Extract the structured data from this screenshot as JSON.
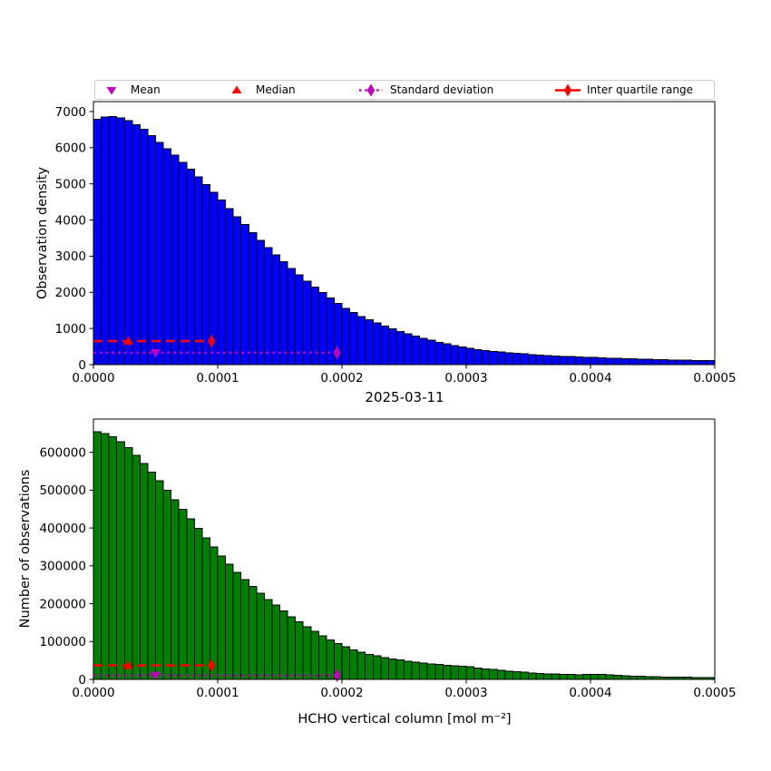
{
  "figure": {
    "title": "2025-03-11",
    "xlabel": "HCHO vertical column [mol m⁻²]"
  },
  "legend": {
    "items": [
      {
        "label": "Mean",
        "marker": "triangle-down",
        "color": "#bf00bf",
        "line": "none"
      },
      {
        "label": "Median",
        "marker": "triangle-up",
        "color": "#ff0000",
        "line": "none"
      },
      {
        "label": "Standard deviation",
        "marker": "thin-diamond",
        "color": "#bf00bf",
        "line": "dotted"
      },
      {
        "label": "Inter quartile range",
        "marker": "thin-diamond",
        "color": "#ff0000",
        "line": "dashed"
      }
    ]
  },
  "chart_data": [
    {
      "type": "bar",
      "name": "observation-density-histogram",
      "ylabel": "Observation density",
      "bar_color": "#0000ff",
      "edge_color": "#000000",
      "xlim": [
        0,
        0.0005
      ],
      "ylim": [
        0,
        7275
      ],
      "bin_width": 6.25e-06,
      "xticks": [
        0,
        0.0001,
        0.0002,
        0.0003,
        0.0004,
        0.0005
      ],
      "xtick_labels": [
        "0.0000",
        "0.0001",
        "0.0002",
        "0.0003",
        "0.0004",
        "0.0005"
      ],
      "yticks": [
        0,
        1000,
        2000,
        3000,
        4000,
        5000,
        6000,
        7000
      ],
      "ytick_labels": [
        "0",
        "1000",
        "2000",
        "3000",
        "4000",
        "5000",
        "6000",
        "7000"
      ],
      "values": [
        6780,
        6850,
        6860,
        6820,
        6750,
        6640,
        6510,
        6340,
        6150,
        5970,
        5790,
        5600,
        5400,
        5190,
        4980,
        4770,
        4550,
        4320,
        4090,
        3870,
        3650,
        3440,
        3240,
        3040,
        2850,
        2660,
        2480,
        2310,
        2150,
        1990,
        1840,
        1690,
        1550,
        1440,
        1330,
        1240,
        1150,
        1070,
        990,
        915,
        850,
        790,
        730,
        675,
        620,
        575,
        530,
        490,
        450,
        420,
        395,
        370,
        350,
        330,
        312,
        296,
        280,
        266,
        253,
        241,
        230,
        220,
        212,
        203,
        195,
        187,
        180,
        172,
        165,
        158,
        152,
        146,
        140,
        135,
        130,
        125,
        120,
        116,
        112,
        108
      ],
      "markers": {
        "mean": {
          "x": 5e-05,
          "y": 330,
          "color": "#bf00bf",
          "shape": "triangle-down"
        },
        "median": {
          "x": 2.8e-05,
          "y": 650,
          "color": "#ff0000",
          "shape": "triangle-up"
        },
        "std": {
          "x0": 0,
          "x1": 0.000196,
          "y": 330,
          "color": "#bf00bf",
          "style": "dotted",
          "shape": "thin-diamond"
        },
        "iqr": {
          "x0": 0,
          "x1": 9.5e-05,
          "y": 650,
          "color": "#ff0000",
          "style": "dashed",
          "shape": "thin-diamond"
        }
      }
    },
    {
      "type": "bar",
      "name": "number-of-observations-histogram",
      "ylabel": "Number of observations",
      "bar_color": "#008000",
      "edge_color": "#000000",
      "xlim": [
        0,
        0.0005
      ],
      "ylim": [
        0,
        688000
      ],
      "bin_width": 6.25e-06,
      "xticks": [
        0,
        0.0001,
        0.0002,
        0.0003,
        0.0004,
        0.0005
      ],
      "xtick_labels": [
        "0.0000",
        "0.0001",
        "0.0002",
        "0.0003",
        "0.0004",
        "0.0005"
      ],
      "yticks": [
        0,
        100000,
        200000,
        300000,
        400000,
        500000,
        600000
      ],
      "ytick_labels": [
        "0",
        "100000",
        "200000",
        "300000",
        "400000",
        "500000",
        "600000"
      ],
      "values": [
        655000,
        650000,
        641000,
        628000,
        612000,
        592000,
        571000,
        548000,
        525000,
        500000,
        475000,
        449000,
        424000,
        399000,
        374000,
        350000,
        326000,
        304000,
        283000,
        264000,
        246000,
        228000,
        211000,
        196000,
        181000,
        166000,
        152000,
        139000,
        127000,
        115000,
        104000,
        94500,
        86000,
        78500,
        72000,
        66500,
        62000,
        58000,
        54500,
        51000,
        48000,
        45500,
        43000,
        41000,
        39000,
        37500,
        36000,
        34500,
        33000,
        30500,
        28000,
        26000,
        24000,
        22000,
        20300,
        18600,
        17000,
        15800,
        14800,
        13900,
        13000,
        12600,
        12400,
        12600,
        13500,
        13000,
        12000,
        11000,
        10000,
        9000,
        8200,
        7500,
        7000,
        6500,
        6100,
        5800,
        5500,
        5300,
        5100,
        5000
      ],
      "markers": {
        "mean": {
          "x": 5e-05,
          "y": 10500,
          "color": "#bf00bf",
          "shape": "triangle-down"
        },
        "median": {
          "x": 2.8e-05,
          "y": 37000,
          "color": "#ff0000",
          "shape": "triangle-up"
        },
        "std": {
          "x0": 0,
          "x1": 0.000196,
          "y": 10500,
          "color": "#bf00bf",
          "style": "dotted",
          "shape": "thin-diamond"
        },
        "iqr": {
          "x0": 0,
          "x1": 9.5e-05,
          "y": 37000,
          "color": "#ff0000",
          "style": "dashed",
          "shape": "thin-diamond"
        }
      }
    }
  ]
}
